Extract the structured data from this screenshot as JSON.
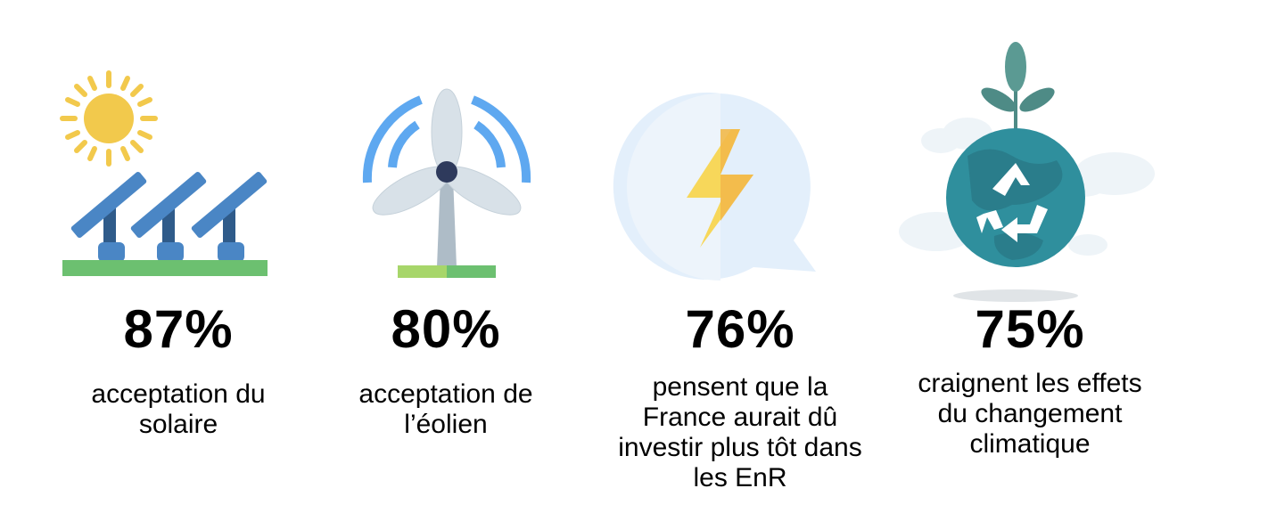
{
  "stats": [
    {
      "value": "87%",
      "label_lines": [
        "acceptation du",
        "solaire"
      ],
      "icon": "solar-panel-icon"
    },
    {
      "value": "80%",
      "label_lines": [
        "acceptation de",
        "l’éolien"
      ],
      "icon": "wind-turbine-icon"
    },
    {
      "value": "76%",
      "label_lines": [
        "pensent que la",
        "France aurait dû",
        "investir plus tôt dans",
        "les EnR"
      ],
      "icon": "lightning-bubble-icon"
    },
    {
      "value": "75%",
      "label_lines": [
        "craignent les effets",
        "du changement",
        "climatique"
      ],
      "icon": "recycling-earth-icon"
    }
  ],
  "colors": {
    "sun": "#f2c94c",
    "panel": "#4a86c5",
    "panel_post": "#2f5b8a",
    "grass": "#6cc070",
    "turbine_blade": "#d8e1e8",
    "wave": "#5ea8f0",
    "bolt": "#f4c64e",
    "bubble": "#e3effb",
    "earth": "#2f8f9d",
    "leaf": "#4e8b86"
  }
}
